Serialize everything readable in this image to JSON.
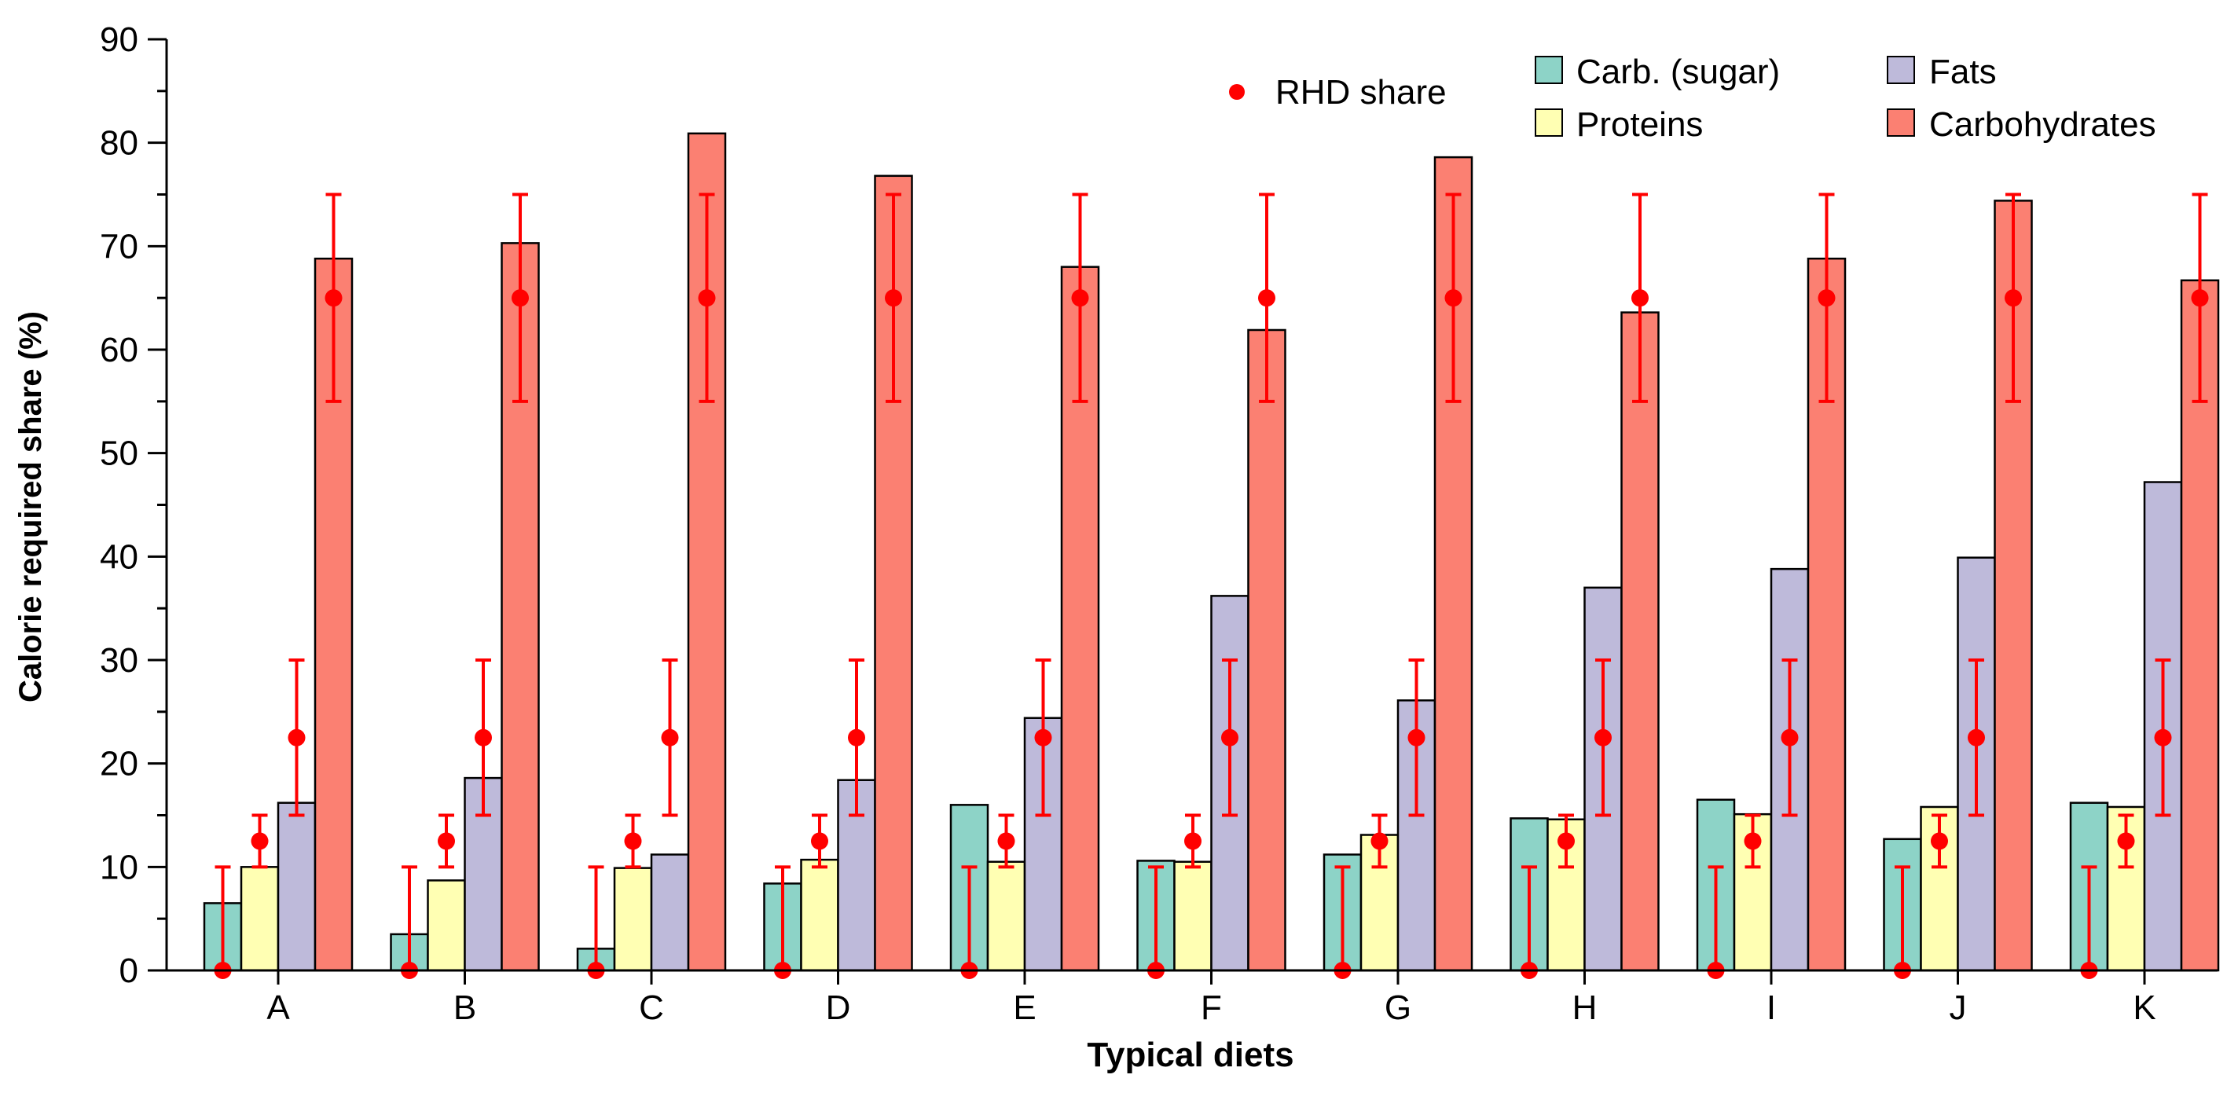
{
  "chart_data": {
    "type": "bar",
    "title": "",
    "xlabel": "Typical diets",
    "ylabel": "Calorie required share (%)",
    "ylim": [
      0,
      90
    ],
    "yticks": [
      0,
      10,
      20,
      30,
      40,
      50,
      60,
      70,
      80,
      90
    ],
    "grid": false,
    "legend_position": "top-right",
    "categories": [
      "A",
      "B",
      "C",
      "D",
      "E",
      "F",
      "G",
      "H",
      "I",
      "J",
      "K"
    ],
    "series": [
      {
        "name": "Carb. (sugar)",
        "color": "#8dd3c7",
        "values": [
          6.5,
          3.5,
          2.1,
          8.4,
          16.0,
          10.6,
          11.2,
          14.7,
          16.5,
          12.7,
          16.2
        ],
        "rhd": {
          "value": 0,
          "low": 0,
          "high": 10
        }
      },
      {
        "name": "Proteins",
        "color": "#ffffb3",
        "values": [
          10.0,
          8.7,
          9.9,
          10.7,
          10.5,
          10.5,
          13.1,
          14.6,
          15.1,
          15.8,
          15.8
        ],
        "rhd": {
          "value": 12.5,
          "low": 10,
          "high": 15
        }
      },
      {
        "name": "Fats",
        "color": "#bebada",
        "values": [
          16.2,
          18.6,
          11.2,
          18.4,
          24.4,
          36.2,
          26.1,
          37.0,
          38.8,
          39.9,
          47.2
        ],
        "rhd": {
          "value": 22.5,
          "low": 15,
          "high": 30
        }
      },
      {
        "name": "Carbohydrates",
        "color": "#fb8072",
        "values": [
          68.8,
          70.3,
          80.9,
          76.8,
          68.0,
          61.9,
          78.6,
          63.6,
          68.8,
          74.4,
          66.7
        ],
        "rhd": {
          "value": 65,
          "low": 55,
          "high": 75
        }
      }
    ],
    "rhd_legend_label": "RHD share",
    "rhd_color": "#ff0000"
  }
}
